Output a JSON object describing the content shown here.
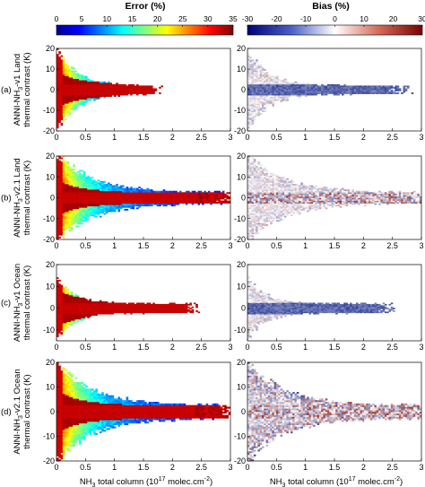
{
  "colorbars": {
    "error": {
      "title": "Error (%)",
      "ticks": [
        "0",
        "5",
        "10",
        "15",
        "20",
        "25",
        "30",
        "35"
      ],
      "min": 0,
      "max": 35,
      "colormap": "jet"
    },
    "bias": {
      "title": "Bias (%)",
      "ticks": [
        "-30",
        "-20",
        "-10",
        "0",
        "10",
        "20",
        "30"
      ],
      "min": -30,
      "max": 30,
      "colormap": "blue-white-red"
    }
  },
  "rows": [
    {
      "label": "(a)",
      "ylabel_line1": "ANNI-NH",
      "ylabel_sub": "3",
      "ylabel_rest": "-v1 Land",
      "ylabel_line2": "thermal  contrast (K)",
      "yticks": [
        "-20",
        "-10",
        "0",
        "10",
        "20"
      ]
    },
    {
      "label": "(b)",
      "ylabel_line1": "ANNI-NH",
      "ylabel_sub": "3",
      "ylabel_rest": "-v2.1 Land",
      "ylabel_line2": "thermal  contrast (K)",
      "yticks": [
        "-20",
        "-10",
        "0",
        "10",
        "20"
      ]
    },
    {
      "label": "(c)",
      "ylabel_line1": "ANNI-NH",
      "ylabel_sub": "3",
      "ylabel_rest": "-v1 Ocean",
      "ylabel_line2": "thermal contrast (K)",
      "yticks": [
        "-10",
        "0",
        "10",
        "20"
      ]
    },
    {
      "label": "(d)",
      "ylabel_line1": "ANNI-NH",
      "ylabel_sub": "3",
      "ylabel_rest": "-v2.1 Ocean",
      "ylabel_line2": "thermal contrast (K)",
      "yticks": [
        "-20",
        "-10",
        "0",
        "10",
        "20"
      ]
    }
  ],
  "xaxis": {
    "label_pre": "NH",
    "label_sub": "3",
    "label_mid": " total column (10",
    "label_sup": "17",
    "label_mid2": " molec.cm",
    "label_sup2": "-2",
    "label_post": ")",
    "ticks": [
      "0",
      "0.5",
      "1",
      "1.5",
      "2",
      "2.5",
      "3"
    ]
  },
  "chart_data": [
    {
      "type": "heatmap",
      "panel": "(a) Error",
      "metric": "Error (%)",
      "xlim": [
        0,
        3
      ],
      "ylim": [
        -20,
        20
      ],
      "spread": [
        19,
        0.35,
        2.1
      ],
      "cmax": 1.7,
      "dataset": "v1 Land"
    },
    {
      "type": "heatmap",
      "panel": "(a) Bias",
      "metric": "Bias (%)",
      "xlim": [
        0,
        3
      ],
      "ylim": [
        -20,
        20
      ],
      "spread": [
        19,
        0.35,
        2.1
      ],
      "cmax": 2.65,
      "dataset": "v1 Land"
    },
    {
      "type": "heatmap",
      "panel": "(b) Error",
      "metric": "Error (%)",
      "xlim": [
        0,
        3
      ],
      "ylim": [
        -20,
        20
      ],
      "spread": [
        20,
        0.6,
        2.9
      ],
      "cmax": 3.0,
      "dataset": "v2.1 Land"
    },
    {
      "type": "heatmap",
      "panel": "(b) Bias",
      "metric": "Bias (%)",
      "xlim": [
        0,
        3
      ],
      "ylim": [
        -20,
        20
      ],
      "spread": [
        20,
        0.6,
        2.9
      ],
      "cmax": 3.0,
      "dataset": "v2.1 Land"
    },
    {
      "type": "heatmap",
      "panel": "(c) Error",
      "metric": "Error (%)",
      "xlim": [
        0,
        3
      ],
      "ylim": [
        -15,
        20
      ],
      "spread": [
        13,
        0.3,
        2.3
      ],
      "cmax": 2.35,
      "dataset": "v1 Ocean"
    },
    {
      "type": "heatmap",
      "panel": "(c) Bias",
      "metric": "Bias (%)",
      "xlim": [
        0,
        3
      ],
      "ylim": [
        -15,
        20
      ],
      "spread": [
        13,
        0.3,
        2.3
      ],
      "cmax": 2.4,
      "dataset": "v1 Ocean"
    },
    {
      "type": "heatmap",
      "panel": "(d) Error",
      "metric": "Error (%)",
      "xlim": [
        0,
        3
      ],
      "ylim": [
        -20,
        20
      ],
      "spread": [
        19,
        0.6,
        2.9
      ],
      "cmax": 3.0,
      "dataset": "v2.1 Ocean"
    },
    {
      "type": "heatmap",
      "panel": "(d) Bias",
      "metric": "Bias (%)",
      "xlim": [
        0,
        3
      ],
      "ylim": [
        -20,
        20
      ],
      "spread": [
        19,
        0.6,
        2.9
      ],
      "cmax": 3.0,
      "dataset": "v2.1 Ocean"
    }
  ]
}
